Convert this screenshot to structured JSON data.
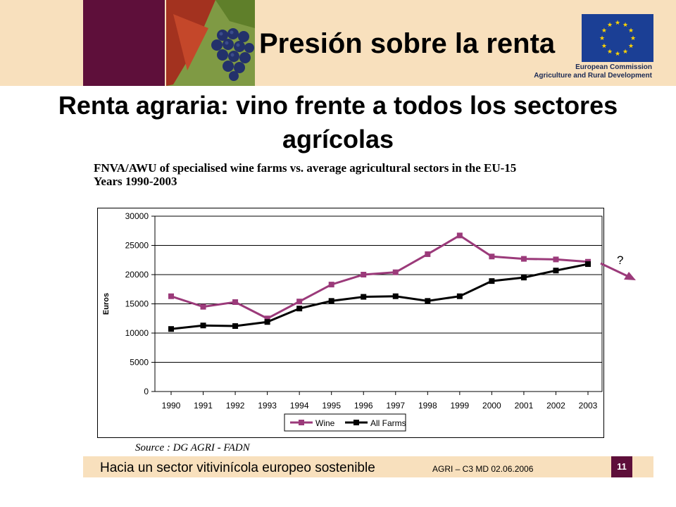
{
  "header": {
    "title": "Presión sobre la renta",
    "org_line1": "European Commission",
    "org_line2": "Agriculture and Rural Development",
    "accent_color": "#5e0f3a",
    "band_color": "#f8e0bd"
  },
  "subtitle": "Renta agraria: vino frente a todos los sectores agrícolas",
  "chart_caption_line1": "FNVA/AWU of specialised wine farms vs. average agricultural sectors in the EU-15",
  "chart_caption_line2": "Years 1990-2003",
  "annotation_question": "?",
  "source": "Source : DG AGRI - FADN",
  "footer": {
    "title": "Hacia un sector vitivinícola europeo sostenible",
    "meta": "AGRI – C3 MD     02.06.2006",
    "page": "11"
  },
  "chart_data": {
    "type": "line",
    "x": [
      "1990",
      "1991",
      "1992",
      "1993",
      "1994",
      "1995",
      "1996",
      "1997",
      "1998",
      "1999",
      "2000",
      "2001",
      "2002",
      "2003"
    ],
    "series": [
      {
        "name": "Wine",
        "color": "#9b3a7a",
        "values": [
          16300,
          14500,
          15300,
          12500,
          15400,
          18300,
          20000,
          20400,
          23500,
          26700,
          23100,
          22700,
          22600,
          22200
        ]
      },
      {
        "name": "All Farms",
        "color": "#000000",
        "values": [
          10700,
          11300,
          11200,
          11900,
          14200,
          15500,
          16200,
          16300,
          15500,
          16300,
          18900,
          19500,
          20700,
          21800
        ]
      }
    ],
    "ylabel": "Euros",
    "ylim": [
      0,
      30000
    ],
    "yticks": [
      "0",
      "5000",
      "10000",
      "15000",
      "20000",
      "25000",
      "30000"
    ],
    "grid": true,
    "legend_position": "bottom"
  }
}
